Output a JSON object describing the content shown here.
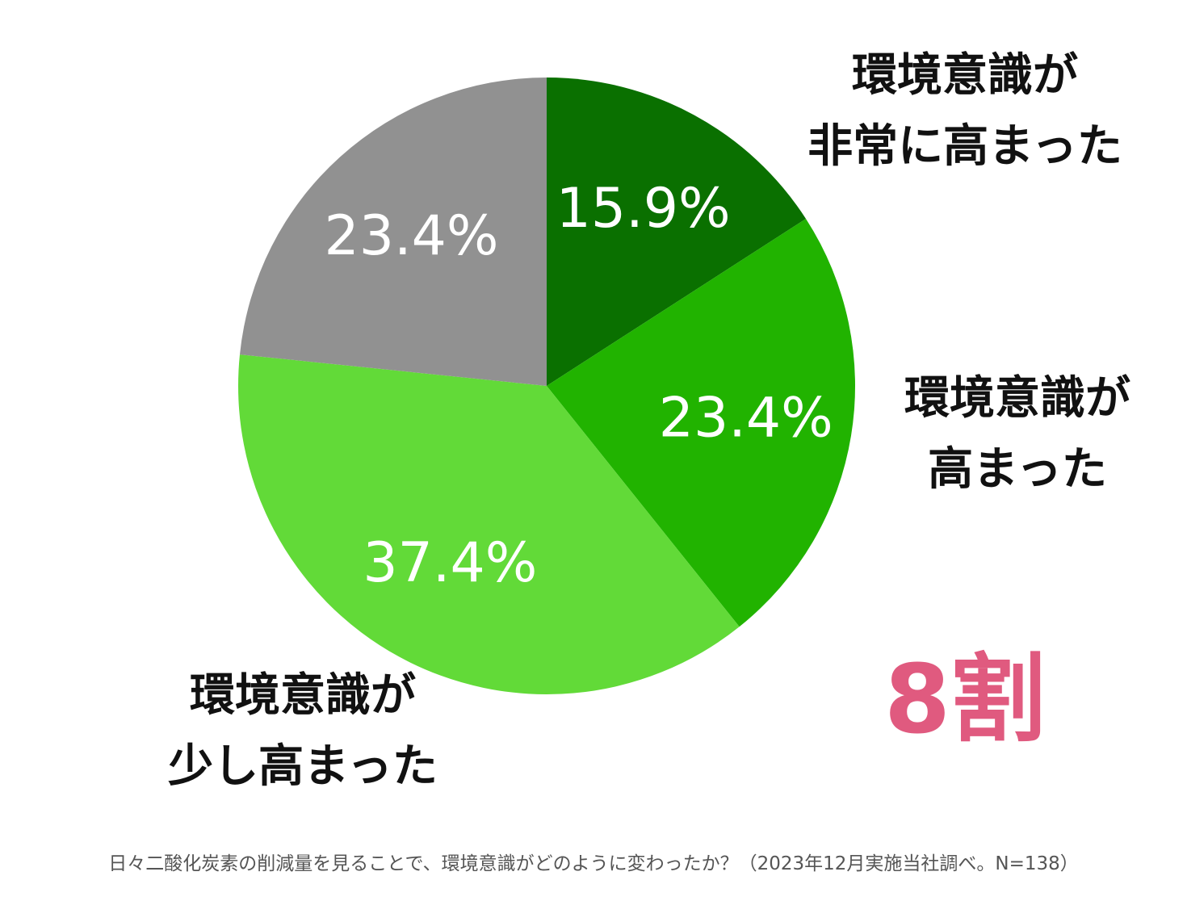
{
  "chart_data": {
    "type": "pie",
    "categories": [
      "環境意識が非常に高まった",
      "環境意識が高まった",
      "環境意識が少し高まった",
      ""
    ],
    "values": [
      15.9,
      23.4,
      37.4,
      23.4
    ],
    "value_labels": [
      "15.9%",
      "23.4%",
      "37.4%",
      "23.4%"
    ],
    "colors": [
      "#0a7000",
      "#21b300",
      "#62da38",
      "#919191"
    ],
    "category_labels": {
      "very_high": [
        "環境意識が",
        "非常に高まった"
      ],
      "high": [
        "環境意識が",
        "高まった"
      ],
      "slightly_high": [
        "環境意識が",
        "少し高まった"
      ]
    },
    "annotation": "8割",
    "annotation_color": "#e05a7f",
    "caption": "日々二酸化炭素の削減量を見ることで、環境意識がどのように変わったか？（2023年12月実施当社調べ。N=138）"
  }
}
